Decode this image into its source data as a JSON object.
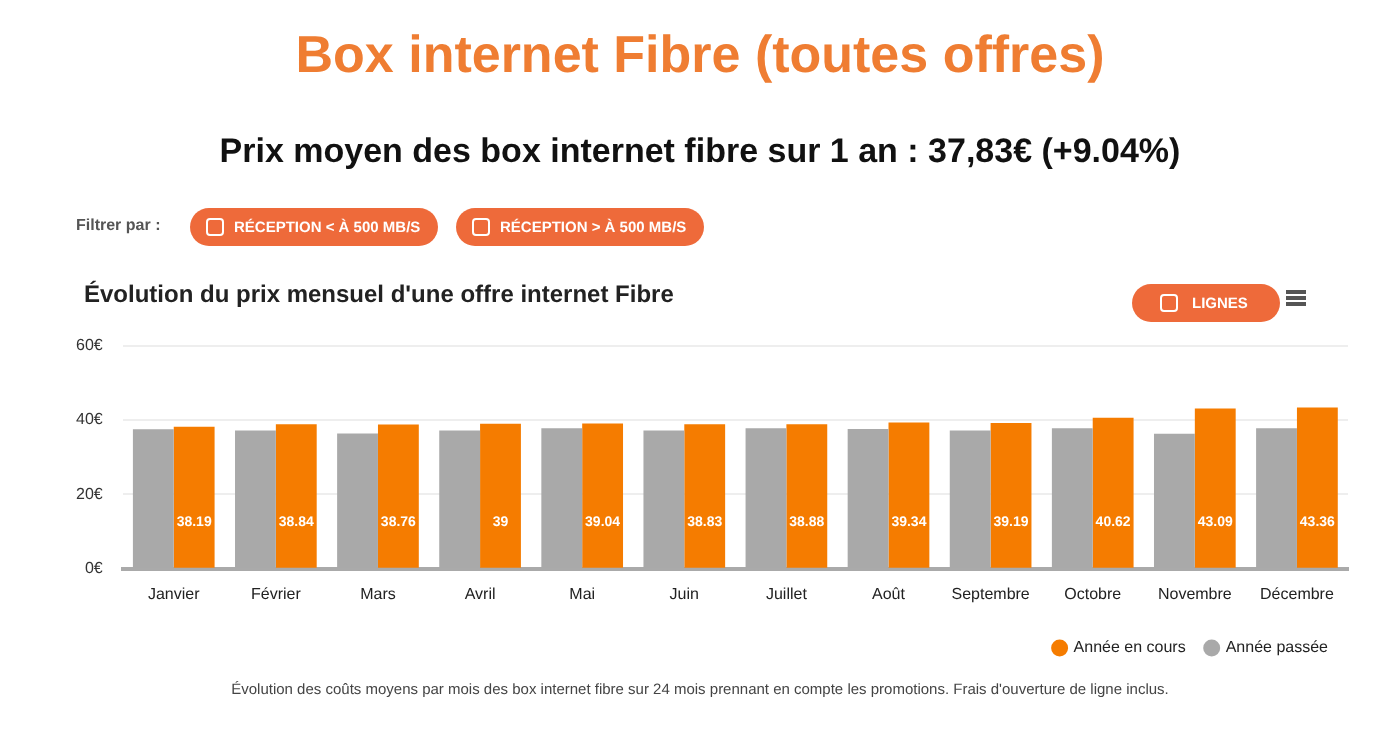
{
  "chart_data": {
    "type": "bar",
    "title": "Box internet Fibre (toutes offres)",
    "subtitle": "Prix moyen des box internet fibre sur 1 an : 37,83€ (+9.04%)",
    "annotations": [
      "Filtrer par :",
      "RÉCEPTION < À 500 MB/S",
      "RÉCEPTION > À 500 MB/S",
      "Évolution du prix mensuel d'une offre internet Fibre",
      "LIGNES",
      "Évolution des coûts moyens par mois des box internet fibre sur 24 mois prennant en compte les promotions. Frais d'ouverture de ligne inclus."
    ],
    "categories": [
      "Janvier",
      "Février",
      "Mars",
      "Avril",
      "Mai",
      "Juin",
      "Juillet",
      "Août",
      "Septembre",
      "Octobre",
      "Novembre",
      "Décembre"
    ],
    "series": [
      {
        "name": "Année passée",
        "color": "#a9a9a9",
        "values": [
          37.5,
          37.2,
          36.4,
          37.2,
          37.8,
          37.2,
          37.8,
          37.6,
          37.2,
          37.8,
          36.3,
          37.8
        ]
      },
      {
        "name": "Année en cours",
        "color": "#f57c00",
        "values": [
          38.19,
          38.84,
          38.76,
          39,
          39.04,
          38.83,
          38.88,
          39.34,
          39.19,
          40.62,
          43.09,
          43.36
        ],
        "value_labels": [
          "38.19",
          "38.84",
          "38.76",
          "39",
          "39.04",
          "38.83",
          "38.88",
          "39.34",
          "39.19",
          "40.62",
          "43.09",
          "43.36"
        ]
      }
    ],
    "ylim": [
      0,
      60
    ],
    "yticks": [
      {
        "value": 0,
        "label": "0€"
      },
      {
        "value": 20,
        "label": "20€"
      },
      {
        "value": 40,
        "label": "40€"
      },
      {
        "value": 60,
        "label": "60€"
      }
    ],
    "grid": "y",
    "legend": "bottom right"
  }
}
